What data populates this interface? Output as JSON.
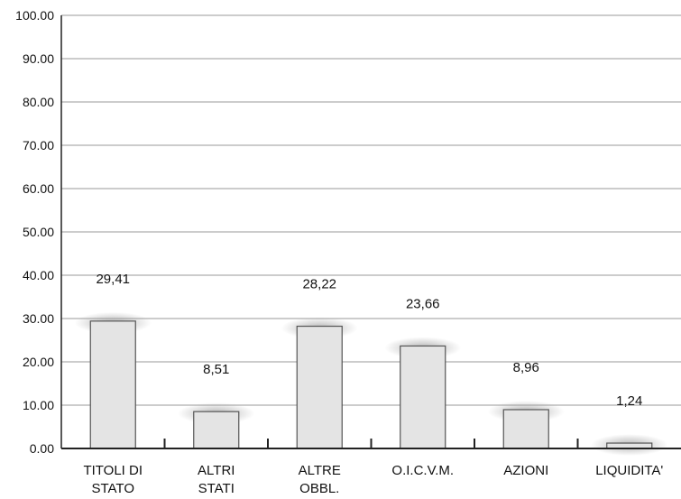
{
  "chart_data": {
    "type": "bar",
    "categories": [
      [
        "TITOLI DI",
        "STATO"
      ],
      [
        "ALTRI",
        "STATI"
      ],
      [
        "ALTRE",
        "OBBL."
      ],
      [
        "O.I.C.V.M."
      ],
      [
        "AZIONI"
      ],
      [
        "LIQUIDITA'"
      ]
    ],
    "values": [
      29.41,
      8.51,
      28.22,
      23.66,
      8.96,
      1.24
    ],
    "value_labels": [
      "29,41",
      "8,51",
      "28,22",
      "23,66",
      "8,96",
      "1,24"
    ],
    "ylim": [
      0,
      100
    ],
    "yticks": [
      "0.00",
      "10.00",
      "20.00",
      "30.00",
      "40.00",
      "50.00",
      "60.00",
      "70.00",
      "80.00",
      "90.00",
      "100.00"
    ],
    "grid": true,
    "legend": "none",
    "colors": {
      "bar_fill": "#e4e4e4",
      "bar_stroke": "#555555",
      "grid": "#9a9a9a",
      "axis": "#222222"
    }
  }
}
